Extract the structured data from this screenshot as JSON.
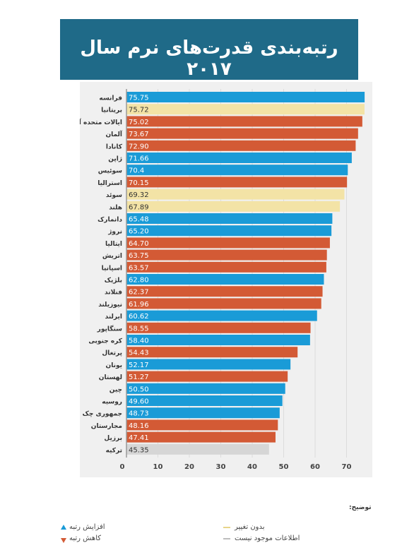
{
  "header": {
    "title": "رتبه‌بندی قدرت‌های نرم سال ۲۰۱۷"
  },
  "colors": {
    "up": "#1a9bd7",
    "down": "#d35a35",
    "same": "#f3e3a6",
    "na": "#d6d6d6",
    "banner": "#1f6a88"
  },
  "chart_data": {
    "type": "bar",
    "orientation": "horizontal",
    "title": "رتبه‌بندی قدرت‌های نرم سال ۲۰۱۷",
    "xlim": [
      0,
      80
    ],
    "x_ticks": [
      "0",
      "10",
      "20",
      "30",
      "40",
      "50",
      "60",
      "70"
    ],
    "grid": true,
    "categories": [
      "فرانسه",
      "بریتانیا",
      "ایالات متحده آمریکا",
      "آلمان",
      "کانادا",
      "ژاپن",
      "سوئیس",
      "استرالیا",
      "سوئد",
      "هلند",
      "دانمارک",
      "نروژ",
      "ایتالیا",
      "اتریش",
      "اسپانیا",
      "بلژیک",
      "فنلاند",
      "نیوزیلند",
      "ایرلند",
      "سنگاپور",
      "کره جنوبی",
      "پرتغال",
      "یونان",
      "لهستان",
      "چین",
      "روسیه",
      "جمهوری چک",
      "مجارستان",
      "برزیل",
      "ترکیه"
    ],
    "values": [
      75.75,
      75.72,
      75.02,
      73.67,
      72.9,
      71.66,
      70.4,
      70.15,
      69.32,
      67.89,
      65.48,
      65.2,
      64.7,
      63.75,
      63.57,
      62.8,
      62.37,
      61.96,
      60.62,
      58.55,
      58.4,
      54.43,
      52.17,
      51.27,
      50.5,
      49.6,
      48.73,
      48.16,
      47.41,
      45.35
    ],
    "labels": [
      "75.75",
      "75.72",
      "75.02",
      "73.67",
      "72.90",
      "71.66",
      "70.4",
      "70.15",
      "69.32",
      "67.89",
      "65.48",
      "65.20",
      "64.70",
      "63.75",
      "63.57",
      "62.80",
      "62.37",
      "61.96",
      "60.62",
      "58.55",
      "58.40",
      "54.43",
      "52.17",
      "51.27",
      "50.50",
      "49.60",
      "48.73",
      "48.16",
      "47.41",
      "45.35"
    ],
    "status": [
      "up",
      "same",
      "down",
      "down",
      "down",
      "up",
      "up",
      "down",
      "same",
      "same",
      "up",
      "up",
      "down",
      "down",
      "down",
      "up",
      "down",
      "down",
      "up",
      "down",
      "up",
      "down",
      "up",
      "down",
      "up",
      "up",
      "up",
      "down",
      "down",
      "na"
    ]
  },
  "legend": {
    "title": "توضیح:",
    "up": "افزایش رتبه",
    "down": "کاهش رتبه",
    "same": "بدون تغییر",
    "na": "اطلاعات موجود نیست"
  }
}
